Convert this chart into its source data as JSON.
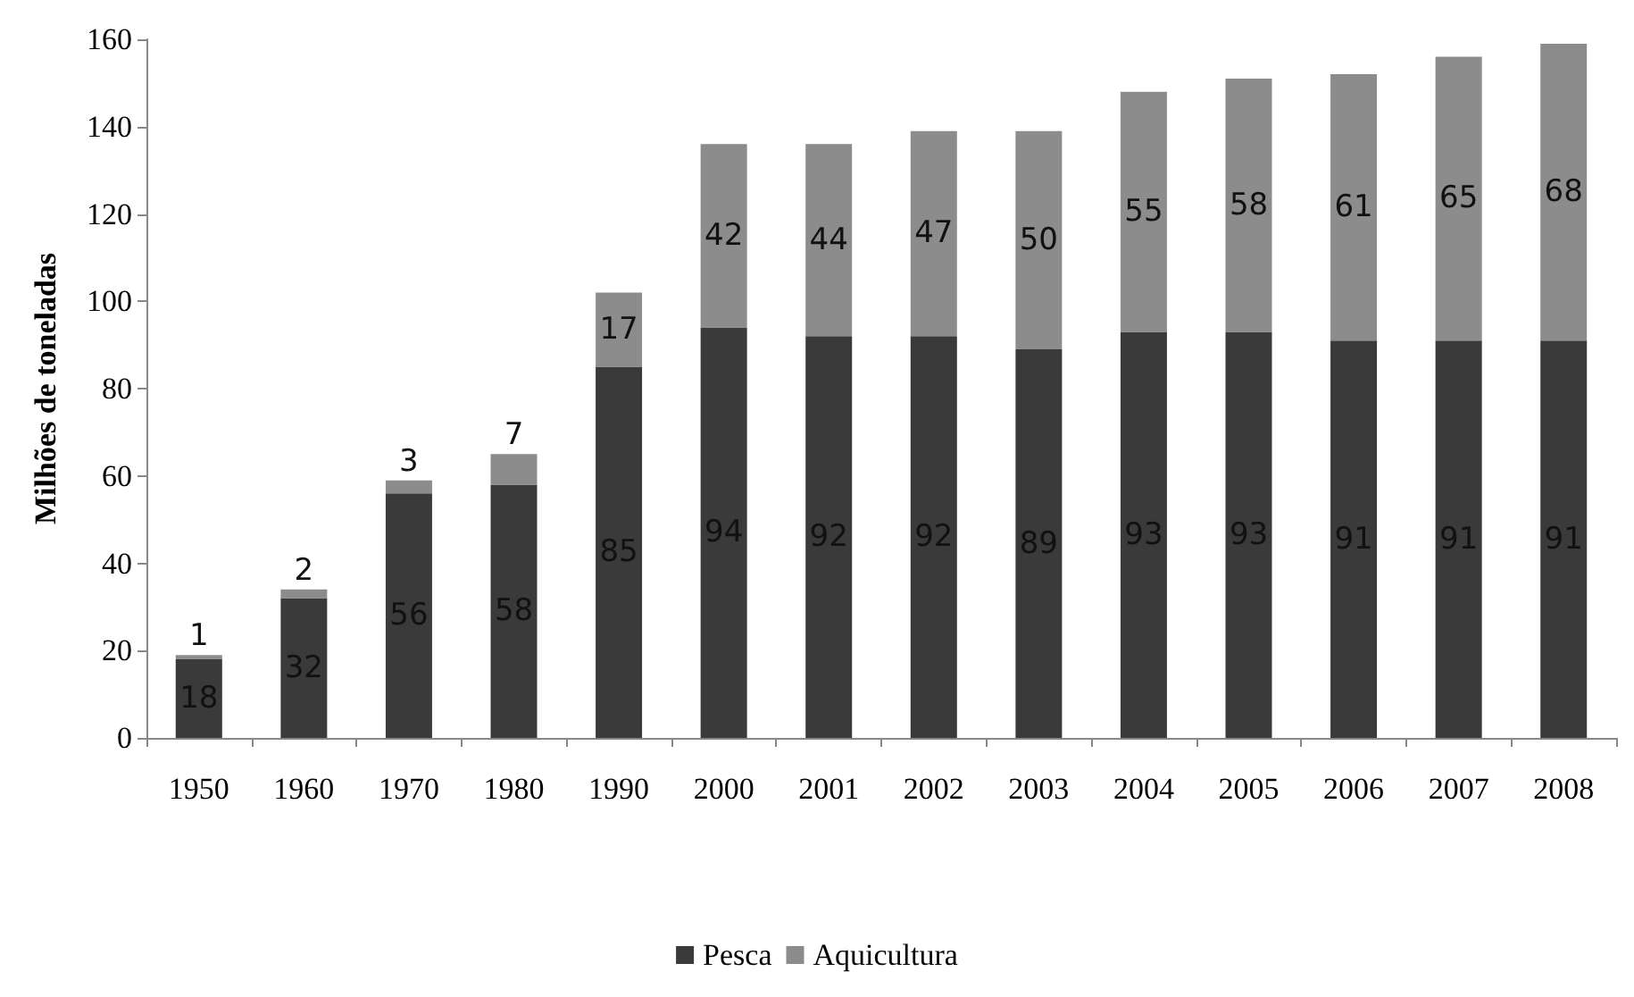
{
  "chart_data": {
    "type": "bar",
    "stacked": true,
    "ylabel": "Milhões de toneladas",
    "categories": [
      "1950",
      "1960",
      "1970",
      "1980",
      "1990",
      "2000",
      "2001",
      "2002",
      "2003",
      "2004",
      "2005",
      "2006",
      "2007",
      "2008"
    ],
    "series": [
      {
        "name": "Pesca",
        "color": "#3a3a3a",
        "values": [
          18,
          32,
          56,
          58,
          85,
          94,
          92,
          92,
          89,
          93,
          93,
          91,
          91,
          91
        ]
      },
      {
        "name": "Aquicultura",
        "color": "#8c8c8c",
        "values": [
          1,
          2,
          3,
          7,
          17,
          42,
          44,
          47,
          50,
          55,
          58,
          61,
          65,
          68
        ]
      }
    ],
    "ylim": [
      0,
      160
    ],
    "yticks": [
      0,
      20,
      40,
      60,
      80,
      100,
      120,
      140,
      160
    ],
    "grid": false,
    "legend": "bottom",
    "data_labels": true
  }
}
